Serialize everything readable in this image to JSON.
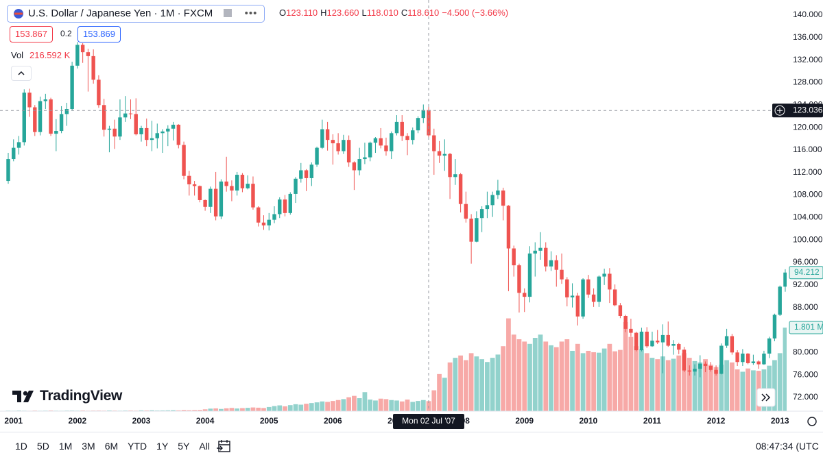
{
  "chart_data": {
    "type": "candlestick",
    "categories": [
      null,
      "2001",
      null,
      null,
      null,
      null,
      null,
      null,
      null,
      null,
      null,
      null,
      null,
      "2002",
      null,
      null,
      null,
      null,
      null,
      null,
      null,
      null,
      null,
      null,
      null,
      "2003",
      null,
      null,
      null,
      null,
      null,
      null,
      null,
      null,
      null,
      null,
      null,
      "2004",
      null,
      null,
      null,
      null,
      null,
      null,
      null,
      null,
      null,
      null,
      null,
      "2005",
      null,
      null,
      null,
      null,
      null,
      null,
      null,
      null,
      null,
      null,
      null,
      "2006",
      null,
      null,
      null,
      null,
      null,
      null,
      null,
      null,
      null,
      null,
      null,
      "2007",
      null,
      null,
      null,
      null,
      null,
      null,
      null,
      null,
      null,
      null,
      null,
      "2008",
      null,
      null,
      null,
      null,
      null,
      null,
      null,
      null,
      null,
      null,
      null,
      "2009",
      null,
      null,
      null,
      null,
      null,
      null,
      null,
      null,
      null,
      null,
      null,
      "2010",
      null,
      null,
      null,
      null,
      null,
      null,
      null,
      null,
      null,
      null,
      null,
      "2011",
      null,
      null,
      null,
      null,
      null,
      null,
      null,
      null,
      null,
      null,
      null,
      "2012",
      null,
      null,
      null,
      null,
      null,
      null,
      null,
      null,
      null,
      null,
      null,
      "2013",
      null
    ],
    "ohlc": [
      [
        110.5,
        115.5,
        110.0,
        114.4
      ],
      [
        114.4,
        117.9,
        114.0,
        116.4
      ],
      [
        116.4,
        118.5,
        115.2,
        117.4
      ],
      [
        117.4,
        126.8,
        116.8,
        126.2
      ],
      [
        126.2,
        126.9,
        121.9,
        123.6
      ],
      [
        123.6,
        124.0,
        118.5,
        119.2
      ],
      [
        119.2,
        125.5,
        118.6,
        124.7
      ],
      [
        124.7,
        126.0,
        123.3,
        125.0
      ],
      [
        125.0,
        125.3,
        118.5,
        118.9
      ],
      [
        118.9,
        121.5,
        115.8,
        119.4
      ],
      [
        119.4,
        123.8,
        119.0,
        122.4
      ],
      [
        122.4,
        124.4,
        120.3,
        123.3
      ],
      [
        123.3,
        131.7,
        123.0,
        131.0
      ],
      [
        131.0,
        135.2,
        130.5,
        134.7
      ],
      [
        134.7,
        135.0,
        131.5,
        133.4
      ],
      [
        133.4,
        134.0,
        126.4,
        132.7
      ],
      [
        132.7,
        133.9,
        127.8,
        128.5
      ],
      [
        128.5,
        129.3,
        123.5,
        124.0
      ],
      [
        124.0,
        125.1,
        118.4,
        119.6
      ],
      [
        119.6,
        120.3,
        115.6,
        119.8
      ],
      [
        119.8,
        121.4,
        116.2,
        118.4
      ],
      [
        118.4,
        125.0,
        117.8,
        121.8
      ],
      [
        121.8,
        125.6,
        121.0,
        122.5
      ],
      [
        122.5,
        125.0,
        121.5,
        122.4
      ],
      [
        122.4,
        125.2,
        118.6,
        118.8
      ],
      [
        118.8,
        120.3,
        117.5,
        119.9
      ],
      [
        119.9,
        121.6,
        116.7,
        117.8
      ],
      [
        117.8,
        121.2,
        115.8,
        118.1
      ],
      [
        118.1,
        120.7,
        116.3,
        119.0
      ],
      [
        119.0,
        119.7,
        115.5,
        119.3
      ],
      [
        119.3,
        120.4,
        116.7,
        119.8
      ],
      [
        119.8,
        121.0,
        117.7,
        120.5
      ],
      [
        120.5,
        120.6,
        116.3,
        116.9
      ],
      [
        116.9,
        117.5,
        110.8,
        111.4
      ],
      [
        111.4,
        112.3,
        107.9,
        109.9
      ],
      [
        109.9,
        110.5,
        107.9,
        109.6
      ],
      [
        109.6,
        109.7,
        106.7,
        107.1
      ],
      [
        107.1,
        107.2,
        105.2,
        105.9
      ],
      [
        105.9,
        109.5,
        104.8,
        109.1
      ],
      [
        109.1,
        112.1,
        103.5,
        104.2
      ],
      [
        104.2,
        110.8,
        103.7,
        110.4
      ],
      [
        110.4,
        114.8,
        108.6,
        109.6
      ],
      [
        109.6,
        110.6,
        106.9,
        108.8
      ],
      [
        108.8,
        112.1,
        107.9,
        111.6
      ],
      [
        111.6,
        111.9,
        108.5,
        109.2
      ],
      [
        109.2,
        111.5,
        109.0,
        110.0
      ],
      [
        110.0,
        111.3,
        105.4,
        105.8
      ],
      [
        105.8,
        106.0,
        102.4,
        103.1
      ],
      [
        103.1,
        104.4,
        101.8,
        102.6
      ],
      [
        102.6,
        104.8,
        101.7,
        103.6
      ],
      [
        103.6,
        106.0,
        103.0,
        104.6
      ],
      [
        104.6,
        107.6,
        103.9,
        107.2
      ],
      [
        107.2,
        108.0,
        104.2,
        104.8
      ],
      [
        104.8,
        108.5,
        104.5,
        108.2
      ],
      [
        108.2,
        111.2,
        106.6,
        110.9
      ],
      [
        110.9,
        113.7,
        110.2,
        112.4
      ],
      [
        112.4,
        112.6,
        108.7,
        111.0
      ],
      [
        111.0,
        113.8,
        109.6,
        113.4
      ],
      [
        113.4,
        116.6,
        113.0,
        116.4
      ],
      [
        116.4,
        121.4,
        116.2,
        119.7
      ],
      [
        119.7,
        121.0,
        115.9,
        117.8
      ],
      [
        117.8,
        118.8,
        113.4,
        117.2
      ],
      [
        117.2,
        119.0,
        115.2,
        115.8
      ],
      [
        115.8,
        118.7,
        115.3,
        117.8
      ],
      [
        117.8,
        118.6,
        113.0,
        113.8
      ],
      [
        113.8,
        114.0,
        108.9,
        112.4
      ],
      [
        112.4,
        116.4,
        111.5,
        114.4
      ],
      [
        114.4,
        117.3,
        113.5,
        114.7
      ],
      [
        114.7,
        117.5,
        114.0,
        117.3
      ],
      [
        117.3,
        118.3,
        115.5,
        118.1
      ],
      [
        118.1,
        119.9,
        116.3,
        116.8
      ],
      [
        116.8,
        118.2,
        115.0,
        115.8
      ],
      [
        115.8,
        119.3,
        114.4,
        119.0
      ],
      [
        119.0,
        122.2,
        118.6,
        121.0
      ],
      [
        121.0,
        122.2,
        117.6,
        118.5
      ],
      [
        118.5,
        119.0,
        115.1,
        117.8
      ],
      [
        117.8,
        120.0,
        117.0,
        119.5
      ],
      [
        119.5,
        122.0,
        119.0,
        121.7
      ],
      [
        121.7,
        124.1,
        120.8,
        123.11
      ],
      [
        123.11,
        123.66,
        118.01,
        118.61
      ],
      [
        118.61,
        119.8,
        111.6,
        115.8
      ],
      [
        115.8,
        117.6,
        113.7,
        115.0
      ],
      [
        115.0,
        117.9,
        112.3,
        115.3
      ],
      [
        115.3,
        115.5,
        107.3,
        111.2
      ],
      [
        111.2,
        114.4,
        109.8,
        111.7
      ],
      [
        111.7,
        111.9,
        104.9,
        106.4
      ],
      [
        106.4,
        108.6,
        103.1,
        103.8
      ],
      [
        103.8,
        104.6,
        95.8,
        99.7
      ],
      [
        99.7,
        105.1,
        99.6,
        103.9
      ],
      [
        103.9,
        106.0,
        101.4,
        105.5
      ],
      [
        105.5,
        108.6,
        103.9,
        106.2
      ],
      [
        106.2,
        108.6,
        104.1,
        108.0
      ],
      [
        108.0,
        110.7,
        107.3,
        108.8
      ],
      [
        108.8,
        109.3,
        103.5,
        106.1
      ],
      [
        106.1,
        106.2,
        90.9,
        98.5
      ],
      [
        98.5,
        99.0,
        93.5,
        95.5
      ],
      [
        95.5,
        95.8,
        87.1,
        90.6
      ],
      [
        90.6,
        91.4,
        87.2,
        89.9
      ],
      [
        89.9,
        98.9,
        88.9,
        97.6
      ],
      [
        97.6,
        99.6,
        93.5,
        98.1
      ],
      [
        98.1,
        101.4,
        96.5,
        98.6
      ],
      [
        98.6,
        99.6,
        94.4,
        95.3
      ],
      [
        95.3,
        98.0,
        94.5,
        96.4
      ],
      [
        96.4,
        97.3,
        91.7,
        94.7
      ],
      [
        94.7,
        97.6,
        92.2,
        93.0
      ],
      [
        93.0,
        93.4,
        88.2,
        89.8
      ],
      [
        89.8,
        92.3,
        88.0,
        90.1
      ],
      [
        90.1,
        90.6,
        84.8,
        86.4
      ],
      [
        86.4,
        93.2,
        86.0,
        93.0
      ],
      [
        93.0,
        93.8,
        89.7,
        90.3
      ],
      [
        90.3,
        91.4,
        88.1,
        89.0
      ],
      [
        89.0,
        93.7,
        88.1,
        93.5
      ],
      [
        93.5,
        94.9,
        92.0,
        94.0
      ],
      [
        94.0,
        95.0,
        88.8,
        91.2
      ],
      [
        91.2,
        92.1,
        88.2,
        88.4
      ],
      [
        88.4,
        88.8,
        86.1,
        86.5
      ],
      [
        86.5,
        86.7,
        83.6,
        84.2
      ],
      [
        84.2,
        86.0,
        82.8,
        83.5
      ],
      [
        83.5,
        83.7,
        80.2,
        80.4
      ],
      [
        80.4,
        84.4,
        80.2,
        83.7
      ],
      [
        83.7,
        84.5,
        80.8,
        81.1
      ],
      [
        81.1,
        83.7,
        81.0,
        82.1
      ],
      [
        82.1,
        84.0,
        81.5,
        81.8
      ],
      [
        81.8,
        85.0,
        76.3,
        83.1
      ],
      [
        83.1,
        85.5,
        81.0,
        81.2
      ],
      [
        81.2,
        82.2,
        79.6,
        81.5
      ],
      [
        81.5,
        81.7,
        79.7,
        80.5
      ],
      [
        80.5,
        81.0,
        76.5,
        76.8
      ],
      [
        76.8,
        77.7,
        75.9,
        76.6
      ],
      [
        76.6,
        77.9,
        75.9,
        77.1
      ],
      [
        77.1,
        79.5,
        75.6,
        78.0
      ],
      [
        78.0,
        78.4,
        76.5,
        77.6
      ],
      [
        77.6,
        78.3,
        76.6,
        76.9
      ],
      [
        76.9,
        77.7,
        75.9,
        76.2
      ],
      [
        76.2,
        81.6,
        76.1,
        81.2
      ],
      [
        81.2,
        84.2,
        80.8,
        82.9
      ],
      [
        82.9,
        83.3,
        79.6,
        80.0
      ],
      [
        80.0,
        80.4,
        77.6,
        78.3
      ],
      [
        78.3,
        80.6,
        77.6,
        79.8
      ],
      [
        79.8,
        79.9,
        77.9,
        78.1
      ],
      [
        78.1,
        79.6,
        77.8,
        78.4
      ],
      [
        78.4,
        78.6,
        77.1,
        77.9
      ],
      [
        77.9,
        80.3,
        77.8,
        79.8
      ],
      [
        79.8,
        82.8,
        79.0,
        82.5
      ],
      [
        82.5,
        86.9,
        82.0,
        86.7
      ],
      [
        86.7,
        91.9,
        86.5,
        91.7
      ],
      [
        91.7,
        94.8,
        90.8,
        94.212
      ]
    ],
    "volumes": [
      12,
      10,
      14,
      11,
      9,
      13,
      10,
      12,
      15,
      11,
      10,
      13,
      14,
      12,
      15,
      11,
      13,
      14,
      12,
      16,
      13,
      11,
      14,
      15,
      12,
      18,
      16,
      20,
      15,
      17,
      19,
      22,
      18,
      25,
      21,
      24,
      26,
      40,
      55,
      60,
      48,
      62,
      70,
      58,
      66,
      72,
      80,
      75,
      68,
      90,
      110,
      125,
      105,
      130,
      150,
      140,
      160,
      175,
      190,
      210,
      200,
      220,
      240,
      260,
      300,
      330,
      280,
      410,
      250,
      230,
      270,
      260,
      240,
      230,
      210,
      250,
      200,
      220,
      240,
      216.592,
      450,
      800,
      720,
      1050,
      1150,
      1200,
      1100,
      1250,
      1180,
      1120,
      1060,
      1150,
      1220,
      1400,
      2000,
      1650,
      1550,
      1500,
      1450,
      1580,
      1650,
      1500,
      1420,
      1380,
      1500,
      1550,
      1300,
      1450,
      1250,
      1300,
      1270,
      1260,
      1350,
      1450,
      1290,
      1320,
      1920,
      1600,
      1400,
      1330,
      1250,
      1150,
      1120,
      1180,
      1100,
      1130,
      1200,
      1250,
      1150,
      1080,
      1050,
      1120,
      1000,
      950,
      1000,
      1100,
      1050,
      900,
      850,
      920,
      880,
      870,
      900,
      980,
      1100,
      1250,
      1801
    ],
    "ylim": [
      69.56,
      142.68
    ],
    "yticks": [
      {
        "value": 72,
        "label": "72.000"
      },
      {
        "value": 76,
        "label": "76.000"
      },
      {
        "value": 80,
        "label": "80.000"
      },
      {
        "value": 84,
        "label": "84.000"
      },
      {
        "value": 88,
        "label": "88.000"
      },
      {
        "value": 92,
        "label": "92.000"
      },
      {
        "value": 96,
        "label": "96.000"
      },
      {
        "value": 100,
        "label": "100.000"
      },
      {
        "value": 104,
        "label": "104.000"
      },
      {
        "value": 108,
        "label": "108.000"
      },
      {
        "value": 112,
        "label": "112.000"
      },
      {
        "value": 116,
        "label": "116.000"
      },
      {
        "value": 120,
        "label": "120.000"
      },
      {
        "value": 124,
        "label": "124.000"
      },
      {
        "value": 128,
        "label": "128.000"
      },
      {
        "value": 132,
        "label": "132.000"
      },
      {
        "value": 136,
        "label": "136.000"
      },
      {
        "value": 140,
        "label": "140.000"
      }
    ],
    "volume_lim": [
      0,
      8860
    ],
    "grid": false,
    "up_color": "#26a69a",
    "down_color": "#ef5350",
    "volume_up_color": "#92d2cc",
    "volume_down_color": "#f7a9a7",
    "last_price": {
      "value": 94.212,
      "label": "94.212"
    },
    "last_volume": {
      "value": 1801,
      "label": "1.801 M"
    },
    "crosshair": {
      "label": "Mon 02 Jul '07",
      "price": {
        "value": 123.036,
        "label": "123.036"
      }
    }
  },
  "header": {
    "symbol": "U.S. Dollar / Japanese Yen · 1M · FXCM",
    "ohlc": [
      {
        "key": "O",
        "value": "123.110"
      },
      {
        "key": "H",
        "value": "123.660"
      },
      {
        "key": "L",
        "value": "118.010"
      },
      {
        "key": "C",
        "value": "118.610"
      }
    ],
    "change": "−4.500 (−3.66%)",
    "sell": "153.867",
    "spread": "0.2",
    "buy": "153.869",
    "volume_title": "Vol",
    "volume_readout": "216.592 K"
  },
  "brand": "TradingView",
  "toolbar": {
    "ranges": [
      "1D",
      "5D",
      "1M",
      "3M",
      "6M",
      "YTD",
      "1Y",
      "5Y",
      "All"
    ],
    "clock": "08:47:34 (UTC"
  }
}
